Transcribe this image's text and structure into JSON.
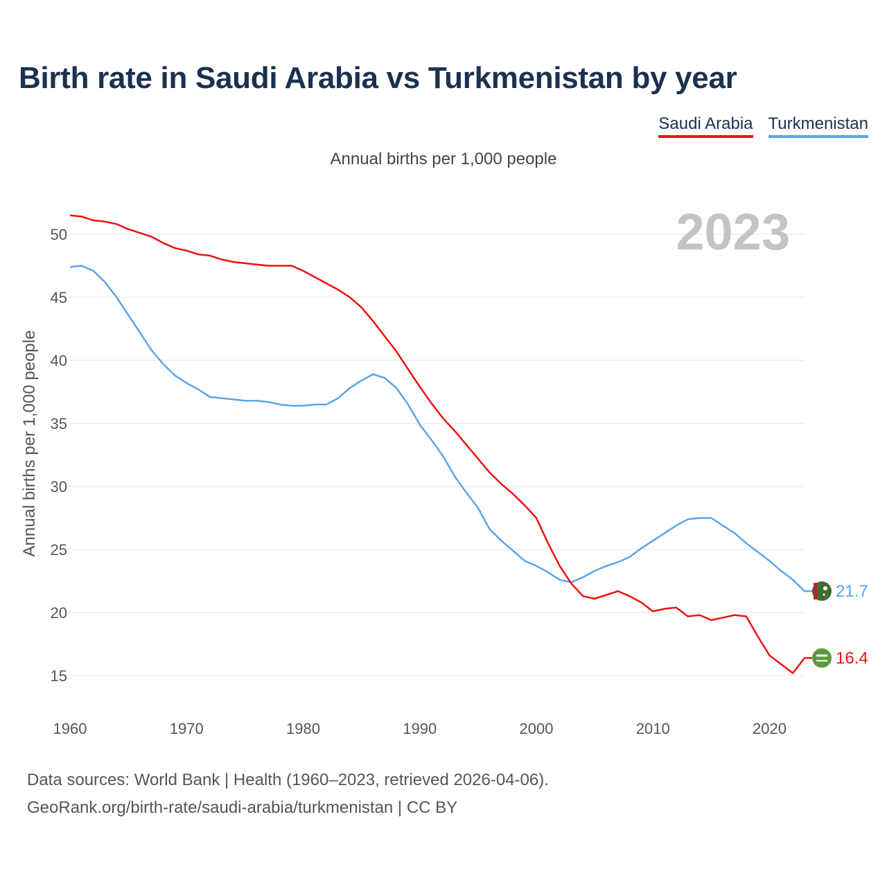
{
  "title": "Birth rate in Saudi Arabia vs Turkmenistan by year",
  "legend": {
    "saudi": "Saudi Arabia",
    "turkmenistan": "Turkmenistan"
  },
  "colors": {
    "saudi": "#ee1111",
    "turkmenistan": "#5aa6e8",
    "title": "#1b3150",
    "watermark": "#c4c4c4"
  },
  "source": {
    "line1": "Data sources: World Bank | Health (1960–2023, retrieved 2026-04-06).",
    "line2": "GeoRank.org/birth-rate/saudi-arabia/turkmenistan | CC BY"
  },
  "chart_data": {
    "type": "line",
    "title": "Birth rate in Saudi Arabia vs Turkmenistan by year",
    "subtitle": "Annual births per 1,000 people",
    "ylabel": "Annual births per 1,000 people",
    "xlabel": "",
    "watermark_year": "2023",
    "xlim": [
      1960,
      2023
    ],
    "ylim": [
      12.5,
      52.5
    ],
    "xticks": [
      1960,
      1970,
      1980,
      1990,
      2000,
      2010,
      2020
    ],
    "yticks": [
      15,
      20,
      25,
      30,
      35,
      40,
      45,
      50
    ],
    "x": [
      1960,
      1961,
      1962,
      1963,
      1964,
      1965,
      1966,
      1967,
      1968,
      1969,
      1970,
      1971,
      1972,
      1973,
      1974,
      1975,
      1976,
      1977,
      1978,
      1979,
      1980,
      1981,
      1982,
      1983,
      1984,
      1985,
      1986,
      1987,
      1988,
      1989,
      1990,
      1991,
      1992,
      1993,
      1994,
      1995,
      1996,
      1997,
      1998,
      1999,
      2000,
      2001,
      2002,
      2003,
      2004,
      2005,
      2006,
      2007,
      2008,
      2009,
      2010,
      2011,
      2012,
      2013,
      2014,
      2015,
      2016,
      2017,
      2018,
      2019,
      2020,
      2021,
      2022,
      2023
    ],
    "series": [
      {
        "name": "Saudi Arabia",
        "color": "#ee1111",
        "end_label": "16.4",
        "values": [
          51.5,
          51.4,
          51.1,
          51.0,
          50.8,
          50.4,
          50.1,
          49.8,
          49.3,
          48.9,
          48.7,
          48.4,
          48.3,
          48.0,
          47.8,
          47.7,
          47.6,
          47.5,
          47.5,
          47.5,
          47.1,
          46.6,
          46.1,
          45.6,
          45.0,
          44.2,
          43.1,
          41.9,
          40.7,
          39.3,
          37.9,
          36.6,
          35.4,
          34.4,
          33.3,
          32.2,
          31.1,
          30.2,
          29.4,
          28.5,
          27.5,
          25.5,
          23.7,
          22.3,
          21.3,
          21.1,
          21.4,
          21.7,
          21.3,
          20.8,
          20.1,
          20.3,
          20.4,
          19.7,
          19.8,
          19.4,
          19.6,
          19.8,
          19.7,
          18.1,
          16.6,
          15.9,
          15.2,
          16.4
        ]
      },
      {
        "name": "Turkmenistan",
        "color": "#5aa6e8",
        "end_label": "21.7",
        "values": [
          47.4,
          47.5,
          47.1,
          46.2,
          45.0,
          43.6,
          42.2,
          40.8,
          39.7,
          38.8,
          38.2,
          37.7,
          37.1,
          37.0,
          36.9,
          36.8,
          36.8,
          36.7,
          36.5,
          36.4,
          36.4,
          36.5,
          36.5,
          37.0,
          37.8,
          38.4,
          38.9,
          38.6,
          37.8,
          36.5,
          34.9,
          33.7,
          32.4,
          30.8,
          29.5,
          28.3,
          26.6,
          25.7,
          24.9,
          24.1,
          23.7,
          23.2,
          22.6,
          22.4,
          22.8,
          23.3,
          23.7,
          24.0,
          24.4,
          25.1,
          25.7,
          26.3,
          26.9,
          27.4,
          27.5,
          27.5,
          26.9,
          26.3,
          25.5,
          24.8,
          24.1,
          23.3,
          22.6,
          21.7
        ]
      }
    ]
  }
}
